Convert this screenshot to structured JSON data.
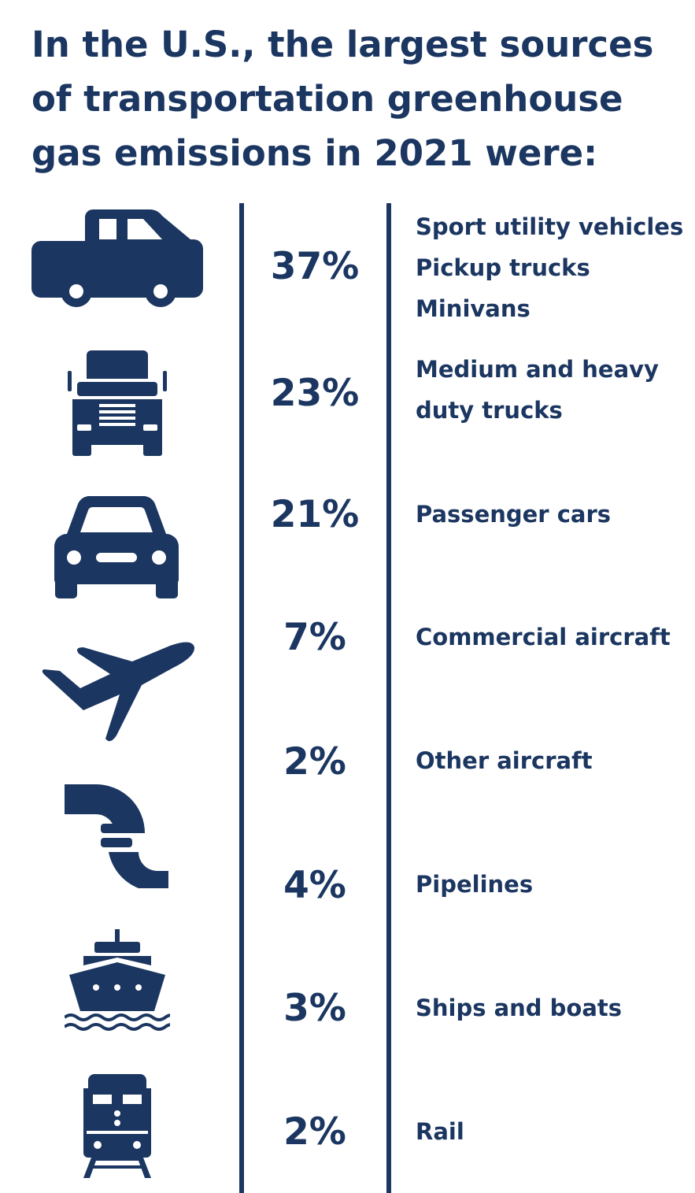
{
  "title": "In the U.S., the largest sources of transportation greenhouse gas emissions in 2021 were:",
  "colors": {
    "primary": "#1b3660",
    "background": "#ffffff"
  },
  "rows": [
    {
      "icon": "pickup-truck-icon",
      "percent": "37%",
      "labels": [
        "Sport utility vehicles",
        "Pickup trucks",
        "Minivans"
      ]
    },
    {
      "icon": "semi-truck-icon",
      "percent": "23%",
      "labels": [
        "Medium and heavy",
        "duty trucks"
      ]
    },
    {
      "icon": "car-icon",
      "percent": "21%",
      "labels": [
        "Passenger cars"
      ]
    },
    {
      "icon": "airplane-icon",
      "percent": "7%",
      "labels": [
        "Commercial aircraft"
      ]
    },
    {
      "icon": "airplane-icon",
      "percent": "2%",
      "labels": [
        "Other aircraft"
      ]
    },
    {
      "icon": "pipeline-icon",
      "percent": "4%",
      "labels": [
        "Pipelines"
      ]
    },
    {
      "icon": "ship-icon",
      "percent": "3%",
      "labels": [
        "Ships and boats"
      ]
    },
    {
      "icon": "train-icon",
      "percent": "2%",
      "labels": [
        "Rail"
      ]
    }
  ]
}
